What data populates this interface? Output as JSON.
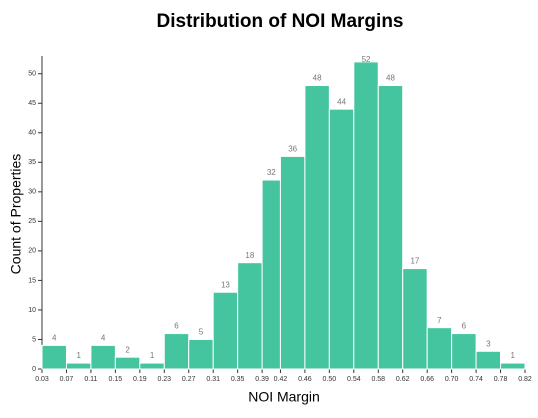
{
  "chart_data": {
    "type": "histogram",
    "title": "Distribution of  NOI Margins",
    "x_label": "NOI Margin",
    "y_label": "Count of Properties",
    "bins": [
      0.03,
      0.07,
      0.11,
      0.15,
      0.19,
      0.23,
      0.27,
      0.31,
      0.35,
      0.39,
      0.42,
      0.46,
      0.5,
      0.54,
      0.58,
      0.62,
      0.66,
      0.7,
      0.74,
      0.78,
      0.82
    ],
    "counts": [
      4,
      1,
      4,
      2,
      1,
      6,
      5,
      13,
      18,
      32,
      36,
      48,
      44,
      52,
      48,
      17,
      7,
      6,
      3,
      1
    ],
    "color": "#45c4a0",
    "xlim": [
      0.03,
      0.82
    ],
    "xticks": [
      0.03,
      0.07,
      0.11,
      0.15,
      0.19,
      0.23,
      0.27,
      0.31,
      0.35,
      0.39,
      0.42,
      0.46,
      {
        "value": 0.5,
        "label": "0.50"
      },
      0.54,
      0.58,
      0.62,
      0.66,
      {
        "value": 0.7,
        "label": "0.70"
      },
      0.74,
      0.78,
      0.82
    ],
    "ylim": [
      0,
      53
    ],
    "yticks": [
      0,
      5,
      10,
      15,
      20,
      25,
      30,
      35,
      40,
      45,
      50
    ]
  }
}
